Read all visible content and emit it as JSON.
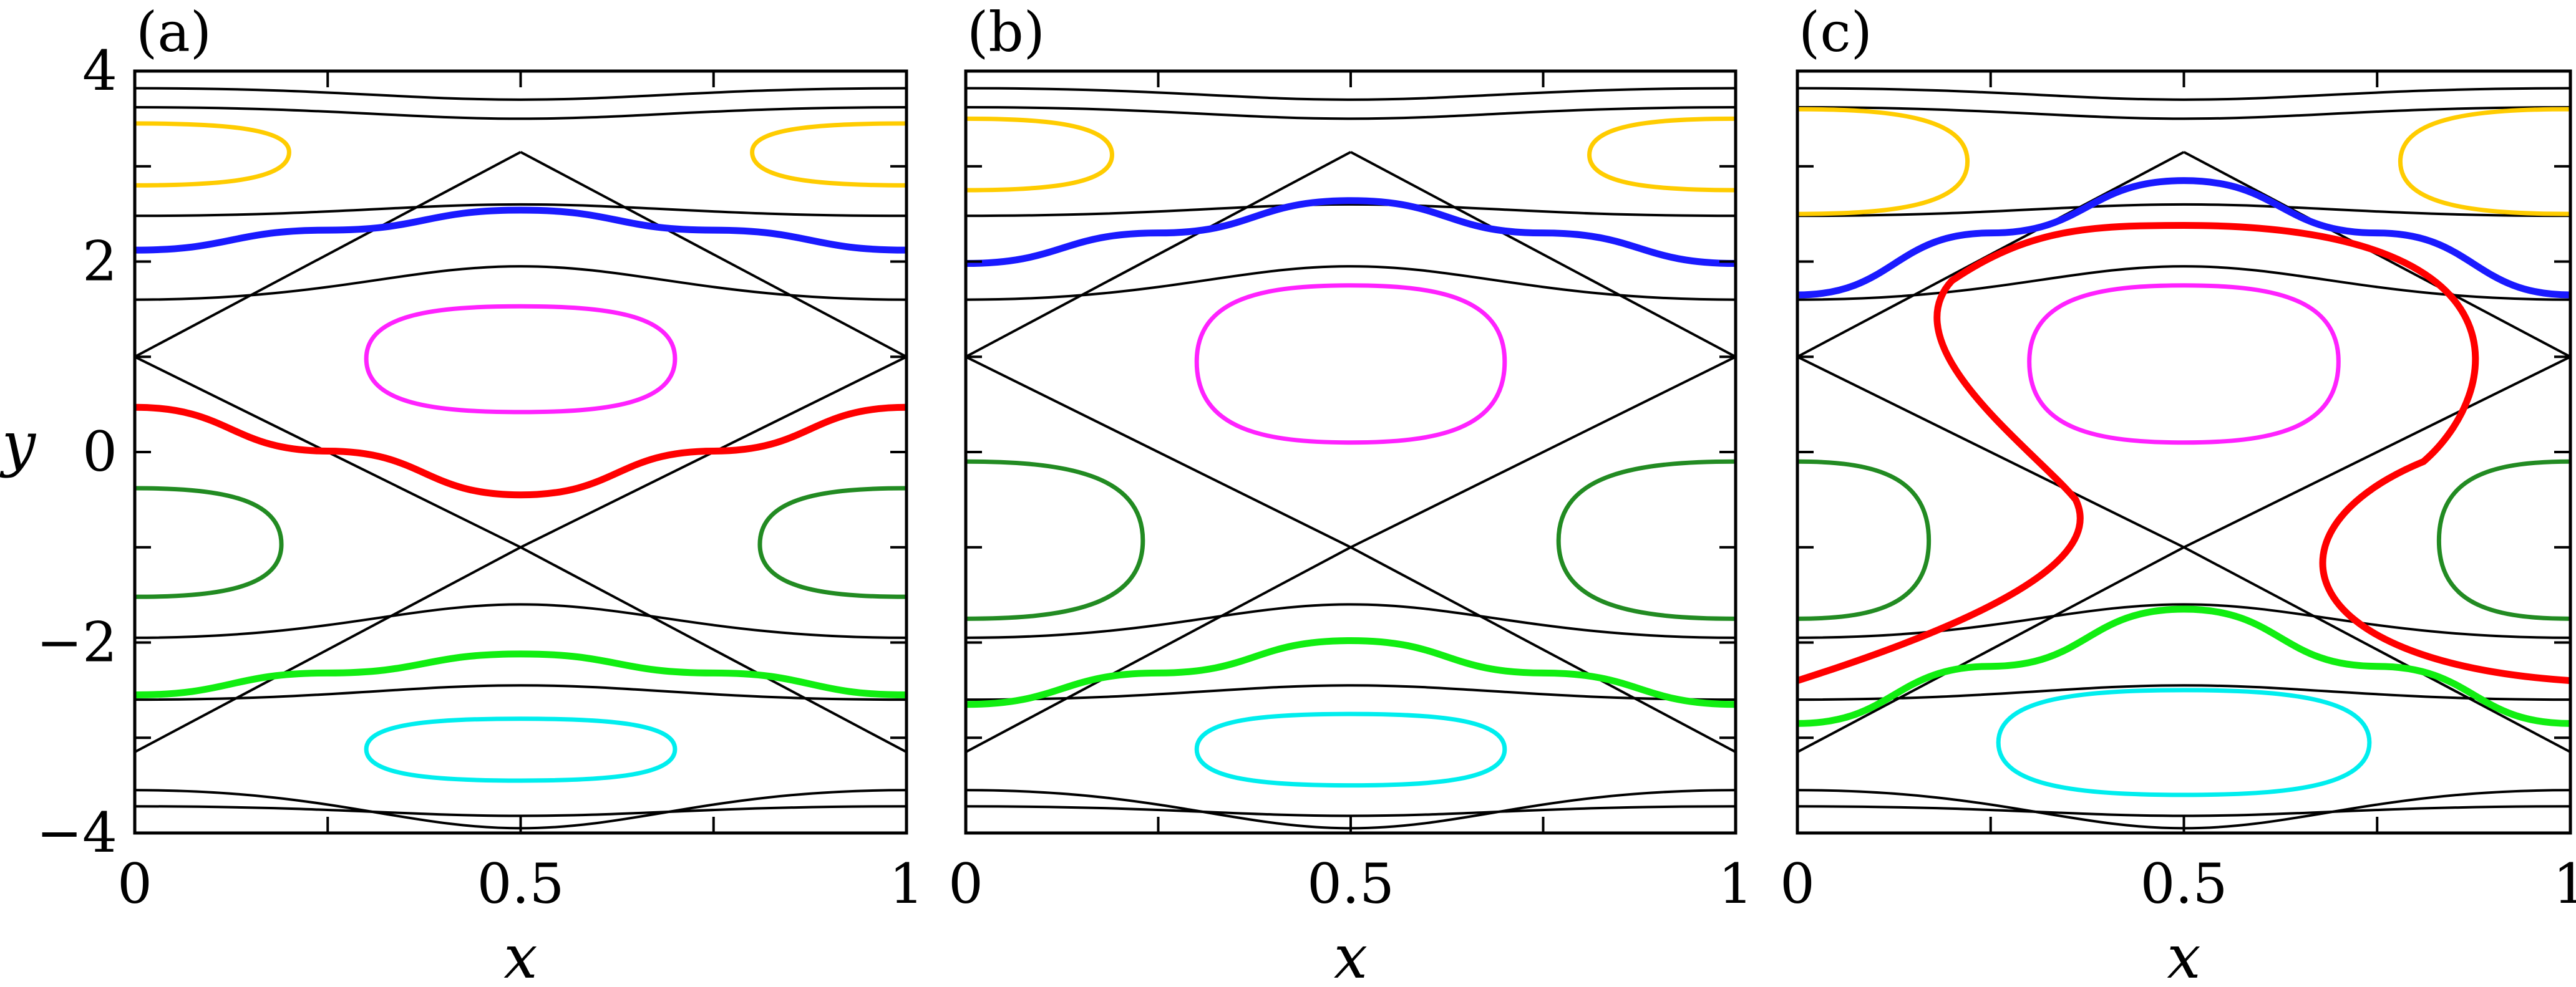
{
  "chart_data": [
    {
      "type": "line",
      "panel_label": "(a)",
      "xlabel": "x",
      "ylabel": "y",
      "xlim": [
        0,
        1
      ],
      "ylim": [
        -4,
        4
      ],
      "x_ticks": [
        0,
        0.25,
        0.5,
        0.75,
        1
      ],
      "x_ticklabels": [
        "0",
        "",
        "0.5",
        "",
        "1"
      ],
      "y_ticks": [
        -4,
        -3,
        -2,
        -1,
        0,
        1,
        2,
        3,
        4
      ],
      "y_ticklabels": [
        "−4",
        "",
        "−2",
        "",
        "0",
        "",
        "2",
        "",
        "4"
      ],
      "grid": false,
      "hyperbolic_points": [
        [
          0,
          1
        ],
        [
          1,
          1
        ],
        [
          0.5,
          -1
        ],
        [
          0,
          -3.15
        ],
        [
          1,
          -3.15
        ],
        [
          0.5,
          3.15
        ]
      ],
      "series": [
        {
          "color": "#1a1aff",
          "x": [
            0,
            0.25,
            0.5,
            0.75,
            1
          ],
          "y": [
            2.12,
            2.33,
            2.54,
            2.33,
            2.12
          ]
        },
        {
          "color": "#ff0000",
          "x": [
            0,
            0.25,
            0.5,
            0.75,
            1
          ],
          "y": [
            0.47,
            0.01,
            -0.45,
            0.01,
            0.47
          ]
        },
        {
          "color": "#11ee11",
          "x": [
            0,
            0.25,
            0.5,
            0.75,
            1
          ],
          "y": [
            -2.55,
            -2.32,
            -2.12,
            -2.32,
            -2.55
          ]
        },
        {
          "color": "#ff22ff",
          "type": "closed",
          "center": [
            0.5,
            0.98
          ],
          "half_width": 0.2,
          "y_top": 1.53,
          "y_bottom": 0.42
        },
        {
          "color": "#228b22",
          "type": "closed",
          "center": [
            0,
            -0.97
          ],
          "half_width": 0.19,
          "y_top": -0.38,
          "y_bottom": -1.52
        },
        {
          "color": "#228b22",
          "type": "closed",
          "center": [
            1,
            -0.97
          ],
          "half_width": 0.19,
          "y_top": -0.38,
          "y_bottom": -1.52
        },
        {
          "color": "#00eeee",
          "type": "closed",
          "center": [
            0.5,
            -3.12
          ],
          "half_width": 0.2,
          "y_top": -2.8,
          "y_bottom": -3.45
        },
        {
          "color": "#ffcc00",
          "type": "closed",
          "center": [
            0,
            3.15
          ],
          "half_width": 0.2,
          "y_top": 3.45,
          "y_bottom": 2.8
        },
        {
          "color": "#ffcc00",
          "type": "closed",
          "center": [
            1,
            3.15
          ],
          "half_width": 0.2,
          "y_top": 3.45,
          "y_bottom": 2.8
        }
      ]
    },
    {
      "type": "line",
      "panel_label": "(b)",
      "xlabel": "x",
      "ylabel": "",
      "xlim": [
        0,
        1
      ],
      "ylim": [
        -4,
        4
      ],
      "x_ticks": [
        0,
        0.25,
        0.5,
        0.75,
        1
      ],
      "x_ticklabels": [
        "0",
        "",
        "0.5",
        "",
        "1"
      ],
      "grid": false,
      "hyperbolic_points": [
        [
          0,
          1
        ],
        [
          1,
          1
        ],
        [
          0.5,
          -1
        ],
        [
          0,
          -3.15
        ],
        [
          1,
          -3.15
        ],
        [
          0.5,
          3.15
        ]
      ],
      "series": [
        {
          "color": "#1a1aff",
          "x": [
            0,
            0.25,
            0.5,
            0.75,
            1
          ],
          "y": [
            1.98,
            2.3,
            2.64,
            2.3,
            1.98
          ]
        },
        {
          "color": "#11ee11",
          "x": [
            0,
            0.25,
            0.5,
            0.75,
            1
          ],
          "y": [
            -2.65,
            -2.32,
            -1.98,
            -2.32,
            -2.65
          ]
        },
        {
          "color": "#ff22ff",
          "type": "closed",
          "center": [
            0.5,
            0.95
          ],
          "half_width": 0.2,
          "y_top": 1.75,
          "y_bottom": 0.1
        },
        {
          "color": "#228b22",
          "type": "closed",
          "center": [
            0,
            -0.93
          ],
          "half_width": 0.23,
          "y_top": -0.1,
          "y_bottom": -1.75
        },
        {
          "color": "#228b22",
          "type": "closed",
          "center": [
            1,
            -0.93
          ],
          "half_width": 0.23,
          "y_top": -0.1,
          "y_bottom": -1.75
        },
        {
          "color": "#00eeee",
          "type": "closed",
          "center": [
            0.5,
            -3.12
          ],
          "half_width": 0.2,
          "y_top": -2.75,
          "y_bottom": -3.5
        },
        {
          "color": "#ffcc00",
          "type": "closed",
          "center": [
            0,
            3.12
          ],
          "half_width": 0.19,
          "y_top": 3.5,
          "y_bottom": 2.75
        },
        {
          "color": "#ffcc00",
          "type": "closed",
          "center": [
            1,
            3.12
          ],
          "half_width": 0.19,
          "y_top": 3.5,
          "y_bottom": 2.75
        }
      ]
    },
    {
      "type": "line",
      "panel_label": "(c)",
      "xlabel": "x",
      "ylabel": "",
      "xlim": [
        0,
        1
      ],
      "ylim": [
        -4,
        4
      ],
      "x_ticks": [
        0,
        0.25,
        0.5,
        0.75,
        1
      ],
      "x_ticklabels": [
        "0",
        "",
        "0.5",
        "",
        "1"
      ],
      "grid": false,
      "hyperbolic_points": [
        [
          0,
          1
        ],
        [
          1,
          1
        ],
        [
          0.5,
          -1
        ],
        [
          0,
          -3.15
        ],
        [
          1,
          -3.15
        ],
        [
          0.5,
          3.15
        ]
      ],
      "series": [
        {
          "color": "#1a1aff",
          "x": [
            0,
            0.25,
            0.5,
            0.75,
            1
          ],
          "y": [
            1.65,
            2.3,
            2.85,
            2.3,
            1.65
          ]
        },
        {
          "color": "#11ee11",
          "x": [
            0,
            0.25,
            0.5,
            0.75,
            1
          ],
          "y": [
            -2.85,
            -2.25,
            -1.65,
            -2.25,
            -2.85
          ]
        },
        {
          "color": "#ff0000",
          "type": "closed",
          "center": [
            0.5,
            0.0
          ],
          "x_left_top": 0.15,
          "x_right_top": 0.86,
          "x_left_bottom": 0.36,
          "x_right_bottom": 0.65,
          "y_top": 2.38,
          "y_bottom": -2.4
        },
        {
          "color": "#ff22ff",
          "type": "closed",
          "center": [
            0.5,
            0.95
          ],
          "half_width": 0.2,
          "y_top": 1.75,
          "y_bottom": 0.1
        },
        {
          "color": "#228b22",
          "type": "closed",
          "center": [
            0,
            -0.93
          ],
          "half_width": 0.17,
          "y_top": -0.1,
          "y_bottom": -1.75
        },
        {
          "color": "#228b22",
          "type": "closed",
          "center": [
            1,
            -0.93
          ],
          "half_width": 0.17,
          "y_top": -0.1,
          "y_bottom": -1.75
        },
        {
          "color": "#00eeee",
          "type": "closed",
          "center": [
            0.5,
            -3.05
          ],
          "half_width": 0.24,
          "y_top": -2.5,
          "y_bottom": -3.6
        },
        {
          "color": "#ffcc00",
          "type": "closed",
          "center": [
            0,
            3.05
          ],
          "half_width": 0.22,
          "y_top": 3.6,
          "y_bottom": 2.5
        },
        {
          "color": "#ffcc00",
          "type": "closed",
          "center": [
            1,
            3.05
          ],
          "half_width": 0.22,
          "y_top": 3.6,
          "y_bottom": 2.5
        }
      ]
    }
  ]
}
